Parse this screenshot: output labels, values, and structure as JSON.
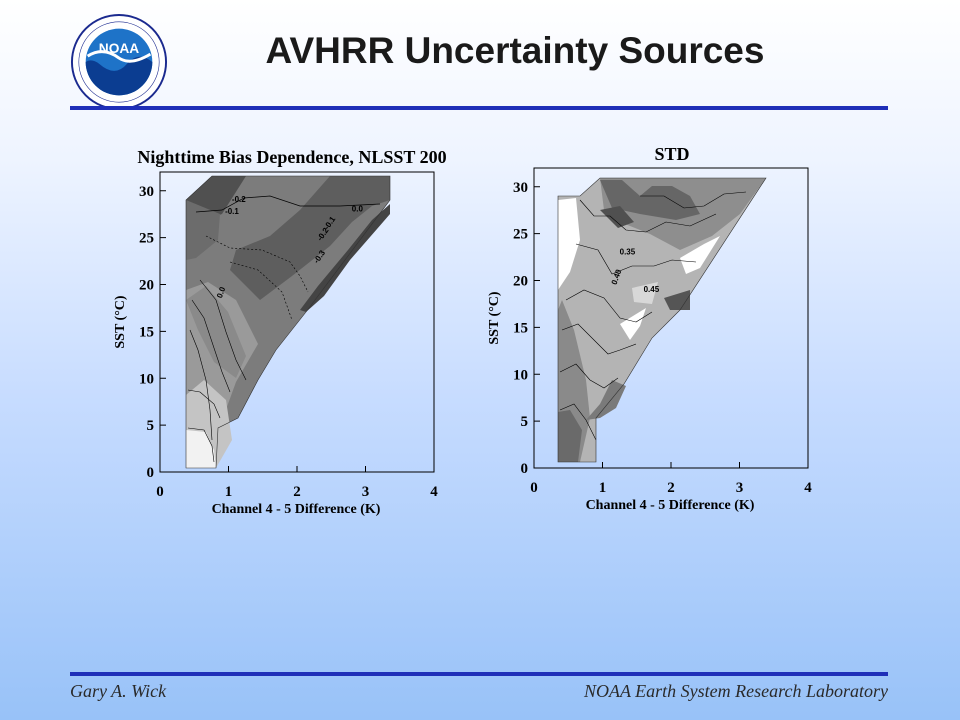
{
  "header": {
    "title": "AVHRR Uncertainty Sources",
    "logo_text": "NOAA",
    "logo_ring_text": "NATIONAL OCEANIC AND ATMOSPHERIC ADMINISTRATION · U.S. DEPARTMENT OF COMMERCE",
    "icon": "noaa-logo"
  },
  "footer": {
    "author": "Gary A. Wick",
    "organization": "NOAA Earth System Research Laboratory"
  },
  "colors": {
    "rule": "#1f2fb8",
    "background_top": "#ffffff",
    "background_bottom": "#98c2f8"
  },
  "chart_data": [
    {
      "type": "heatmap",
      "title": "Nighttime Bias Dependence, NLSST  200",
      "xlabel": "Channel 4 - 5 Difference (K)",
      "ylabel": "SST (°C)",
      "xlim": [
        0,
        4
      ],
      "ylim": [
        0,
        32
      ],
      "xticks": [
        "0",
        "1",
        "2",
        "3",
        "4"
      ],
      "yticks": [
        "0",
        "5",
        "10",
        "15",
        "20",
        "25",
        "30"
      ],
      "contour_labels": [
        {
          "text": "-0.2",
          "x": 1.05,
          "y": 28.8
        },
        {
          "text": "-0.1",
          "x": 0.95,
          "y": 27.5
        },
        {
          "text": "0.0",
          "x": 2.8,
          "y": 27.8
        },
        {
          "text": "-0.1",
          "x": 2.45,
          "y": 25.8
        },
        {
          "text": "-0.2",
          "x": 2.35,
          "y": 24.6
        },
        {
          "text": "-0.3",
          "x": 2.3,
          "y": 22.2
        },
        {
          "text": "0.0",
          "x": 0.9,
          "y": 18.5
        }
      ]
    },
    {
      "type": "heatmap",
      "title": "STD",
      "xlabel": "Channel 4 - 5 Difference (K)",
      "ylabel": "SST (°C)",
      "xlim": [
        0,
        4
      ],
      "ylim": [
        0,
        32
      ],
      "xticks": [
        "0",
        "1",
        "2",
        "3",
        "4"
      ],
      "yticks": [
        "0",
        "5",
        "10",
        "15",
        "20",
        "25",
        "30"
      ],
      "contour_labels": [
        {
          "text": "0.35",
          "x": 1.25,
          "y": 22.8
        },
        {
          "text": "0.40",
          "x": 1.2,
          "y": 19.5
        },
        {
          "text": "0.45",
          "x": 1.6,
          "y": 18.8
        }
      ]
    }
  ]
}
